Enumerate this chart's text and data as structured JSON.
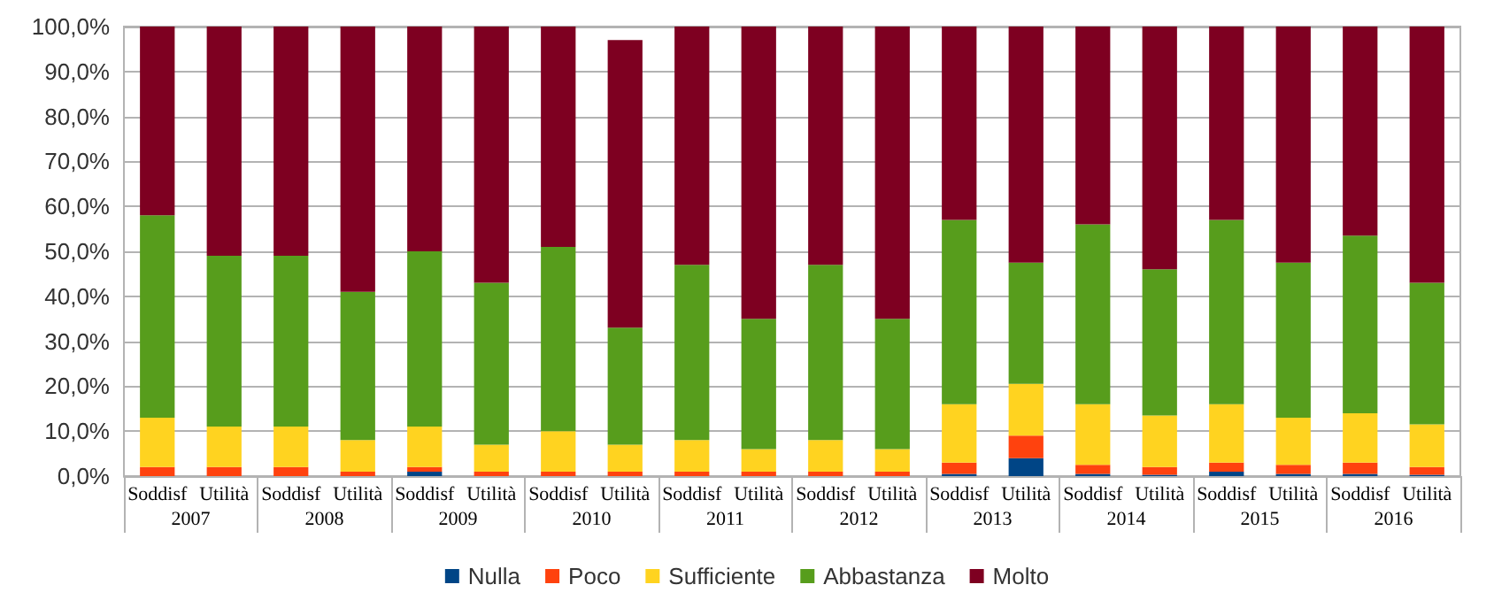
{
  "chart_data": {
    "type": "bar",
    "stacked": true,
    "categories": [
      "Soddisf",
      "Utilità",
      "Soddisf",
      "Utilità",
      "Soddisf",
      "Utilità",
      "Soddisf",
      "Utilità",
      "Soddisf",
      "Utilità",
      "Soddisf",
      "Utilità",
      "Soddisf",
      "Utilità",
      "Soddisf",
      "Utilità",
      "Soddisf",
      "Utilità",
      "Soddisf",
      "Utilità"
    ],
    "annotations": [
      "2007",
      "2008",
      "2009",
      "2010",
      "2011",
      "2012",
      "2013",
      "2014",
      "2015",
      "2016"
    ],
    "series": [
      {
        "name": "Nulla",
        "color": "#004586",
        "values": [
          0,
          0,
          0,
          0,
          1,
          0,
          0,
          0,
          0,
          0,
          0,
          0,
          0.5,
          4,
          0.5,
          0.3,
          1,
          0.5,
          0.5,
          0.3
        ]
      },
      {
        "name": "Poco",
        "color": "#ff420e",
        "values": [
          2,
          2,
          2,
          1,
          1,
          1,
          1,
          1,
          1,
          1,
          1,
          1,
          2.5,
          5,
          2,
          1.7,
          2,
          2,
          2.5,
          1.7
        ]
      },
      {
        "name": "Sufficiente",
        "color": "#ffd320",
        "values": [
          11,
          9,
          9,
          7,
          9,
          6,
          9,
          6,
          7,
          5,
          7,
          5,
          13,
          11.5,
          13.5,
          11.5,
          13,
          10.5,
          11,
          9.5
        ]
      },
      {
        "name": "Abbastanza",
        "color": "#579d1c",
        "values": [
          45,
          38,
          38,
          33,
          39,
          36,
          41,
          26,
          39,
          29,
          39,
          29,
          41,
          27,
          40,
          32.5,
          41,
          34.5,
          39.5,
          31.5
        ]
      },
      {
        "name": "Molto",
        "color": "#7e0021",
        "values": [
          42,
          51,
          51,
          59,
          50,
          57,
          49,
          64,
          53,
          65,
          53,
          65,
          43,
          52.5,
          44,
          54,
          43,
          52.5,
          46.5,
          57
        ]
      }
    ],
    "ylim": [
      0,
      100
    ],
    "yticks": [
      {
        "value": 0,
        "label": "0,0%"
      },
      {
        "value": 10,
        "label": "10,0%"
      },
      {
        "value": 20,
        "label": "20,0%"
      },
      {
        "value": 30,
        "label": "30,0%"
      },
      {
        "value": 40,
        "label": "40,0%"
      },
      {
        "value": 50,
        "label": "50,0%"
      },
      {
        "value": 60,
        "label": "60,0%"
      },
      {
        "value": 70,
        "label": "70,0%"
      },
      {
        "value": 80,
        "label": "80,0%"
      },
      {
        "value": 90,
        "label": "90,0%"
      },
      {
        "value": 100,
        "label": "100,0%"
      }
    ],
    "grid": "y",
    "legend": "bottom"
  }
}
